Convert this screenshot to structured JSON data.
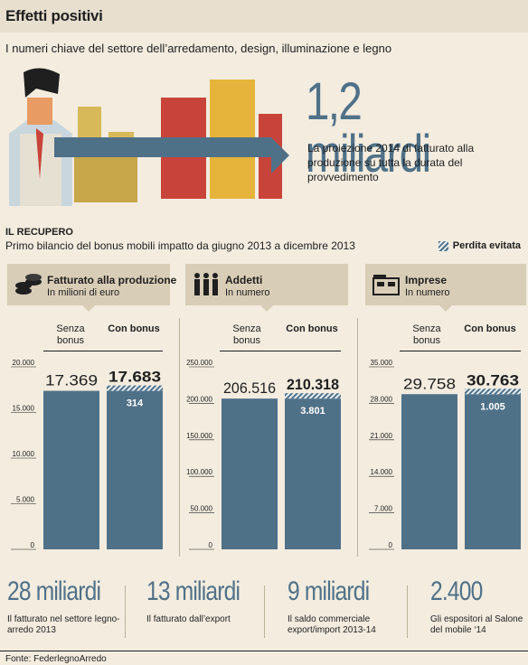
{
  "header": {
    "title": "Effetti positivi",
    "subtitle": "I numeri chiave del settore dell’arredamento, design, illuminazione e legno"
  },
  "highlight": {
    "value": "1,2 miliardi",
    "description": "La proiezione 2014 di fatturato alla produzione su tutta la durata del provvedimento"
  },
  "section": {
    "title": "IL RECUPERO",
    "subtitle": "Primo bilancio del bonus mobili impatto da giugno 2013 a dicembre 2013",
    "legend_label": "Perdita evitata"
  },
  "colors": {
    "bar": "#4f7188",
    "background": "#f3ecdf",
    "panel_header": "#d8cdb7"
  },
  "panels": [
    {
      "title": "Fatturato alla produzione",
      "unit": "In milioni di euro",
      "icon": "coins-icon",
      "col1": "Senza bonus",
      "col2": "Con bonus",
      "label1": "17.369",
      "label2": "17.683",
      "gain_label": "314"
    },
    {
      "title": "Addetti",
      "unit": "In numero",
      "icon": "people-icon",
      "col1": "Senza bonus",
      "col2": "Con bonus",
      "label1": "206.516",
      "label2": "210.318",
      "gain_label": "3.801"
    },
    {
      "title": "Imprese",
      "unit": "In numero",
      "icon": "buildings-icon",
      "col1": "Senza bonus",
      "col2": "Con bonus",
      "label1": "29.758",
      "label2": "30.763",
      "gain_label": "1.005"
    }
  ],
  "chart_data": [
    {
      "type": "bar",
      "title": "Fatturato alla produzione",
      "subtitle": "In milioni di euro",
      "categories": [
        "Senza bonus",
        "Con bonus"
      ],
      "series": [
        {
          "name": "",
          "values": [
            17369,
            17369
          ]
        },
        {
          "name": "Perdita evitata",
          "values": [
            0,
            314
          ]
        }
      ],
      "ylim": [
        0,
        20000
      ],
      "yticks": [
        0,
        5000,
        10000,
        15000,
        20000
      ],
      "ytick_labels": [
        "0",
        "5.000",
        "10.000",
        "15.000",
        "20.000"
      ]
    },
    {
      "type": "bar",
      "title": "Addetti",
      "subtitle": "In numero",
      "categories": [
        "Senza bonus",
        "Con bonus"
      ],
      "series": [
        {
          "name": "",
          "values": [
            206516,
            206516
          ]
        },
        {
          "name": "Perdita evitata",
          "values": [
            0,
            3801
          ]
        }
      ],
      "ylim": [
        0,
        250000
      ],
      "yticks": [
        0,
        50000,
        100000,
        150000,
        200000,
        250000
      ],
      "ytick_labels": [
        "0",
        "50.000",
        "100.000",
        "150.000",
        "200.000",
        "250.000"
      ]
    },
    {
      "type": "bar",
      "title": "Imprese",
      "subtitle": "In numero",
      "categories": [
        "Senza bonus",
        "Con bonus"
      ],
      "series": [
        {
          "name": "",
          "values": [
            29758,
            29758
          ]
        },
        {
          "name": "Perdita evitata",
          "values": [
            0,
            1005
          ]
        }
      ],
      "ylim": [
        0,
        35000
      ],
      "yticks": [
        0,
        7000,
        14000,
        21000,
        28000,
        35000
      ],
      "ytick_labels": [
        "0",
        "7.000",
        "14.000",
        "21.000",
        "28.000",
        "35.000"
      ]
    }
  ],
  "stats": [
    {
      "value": "28 miliardi",
      "description": "Il fatturato nel settore legno-arredo 2013"
    },
    {
      "value": "13 miliardi",
      "description": "Il fatturato dall’export"
    },
    {
      "value": "9 miliardi",
      "description": "Il saldo commerciale export/import 2013-14"
    },
    {
      "value": "2.400",
      "description": "Gli espositori al Salone del mobile ‘14"
    }
  ],
  "source": "Fonte: FederlegnoArredo"
}
